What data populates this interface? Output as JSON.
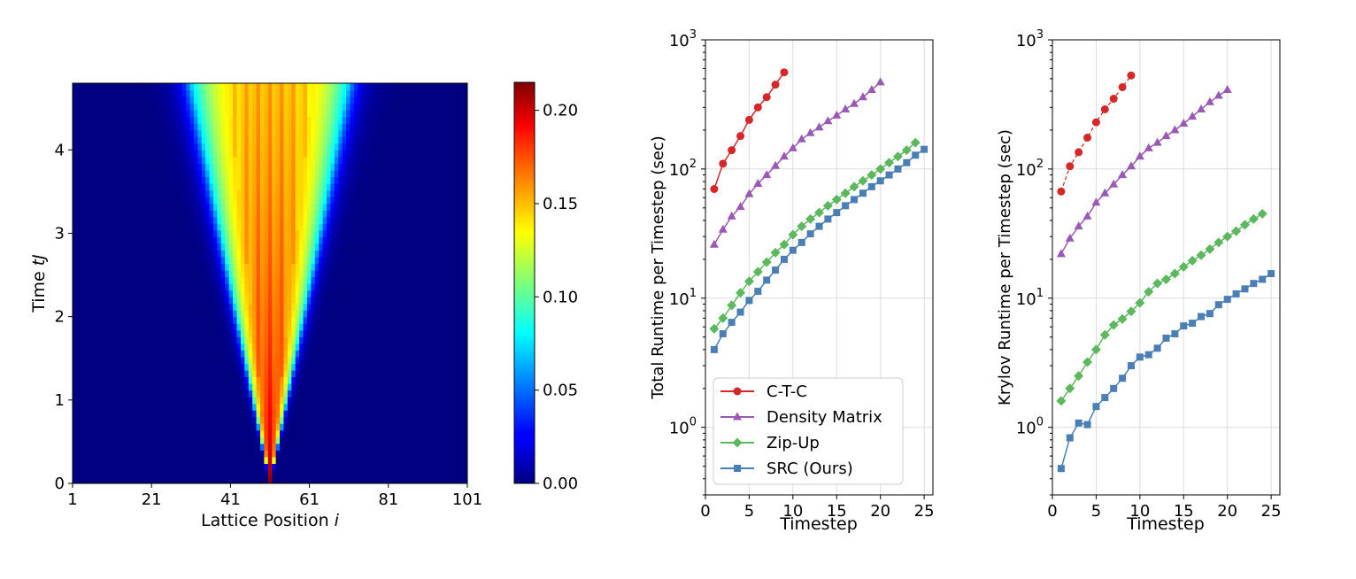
{
  "chart_data": [
    {
      "type": "heatmap",
      "title": "",
      "xlabel": "Lattice Position i",
      "ylabel": "Time tJ",
      "x_ticks": [
        "1",
        "21",
        "41",
        "61",
        "81",
        "101"
      ],
      "y_ticks": [
        "0",
        "1",
        "2",
        "3",
        "4"
      ],
      "xlim": [
        1,
        101
      ],
      "ylim": [
        0,
        4.8
      ],
      "colormap": "jet",
      "colorbar": {
        "range": [
          0,
          0.215
        ],
        "ticks": [
          "0.00",
          "0.05",
          "0.10",
          "0.15",
          "0.20"
        ],
        "tick_values": [
          0,
          0.05,
          0.1,
          0.15,
          0.2
        ]
      },
      "pattern": {
        "center_position": 51,
        "initial_value": 0.215,
        "spread_half_width_at_max_time": 20,
        "core_value_at_max_time": 0.15
      }
    },
    {
      "type": "line",
      "xlabel": "Timestep",
      "ylabel": "Total Runtime per Timestep (sec)",
      "y_scale": "log",
      "xlim": [
        0,
        26
      ],
      "ylim": [
        0.3,
        1000
      ],
      "x_ticks": [
        "0",
        "5",
        "10",
        "15",
        "20",
        "25"
      ],
      "y_ticks": [
        {
          "base": "10",
          "exp": "0"
        },
        {
          "base": "10",
          "exp": "1"
        },
        {
          "base": "10",
          "exp": "2"
        },
        {
          "base": "10",
          "exp": "3"
        }
      ],
      "grid": true,
      "legend_position": "lower-left",
      "series": [
        {
          "name": "C-T-C",
          "color": "#d62728",
          "marker": "circle",
          "line": "solid",
          "x": [
            1,
            2,
            3,
            4,
            5,
            6,
            7,
            8,
            9
          ],
          "y": [
            70,
            110,
            140,
            180,
            240,
            300,
            360,
            450,
            560
          ]
        },
        {
          "name": "Density Matrix",
          "color": "#9b59b6",
          "marker": "triangle",
          "line": "solid",
          "x": [
            1,
            2,
            3,
            4,
            5,
            6,
            7,
            8,
            9,
            10,
            11,
            12,
            13,
            14,
            15,
            16,
            17,
            18,
            19,
            20
          ],
          "y": [
            26,
            34,
            43,
            51,
            64,
            77,
            90,
            106,
            125,
            145,
            170,
            190,
            210,
            235,
            260,
            290,
            320,
            360,
            410,
            470
          ]
        },
        {
          "name": "Zip-Up",
          "color": "#5cb85c",
          "marker": "diamond",
          "line": "solid",
          "x": [
            1,
            2,
            3,
            4,
            5,
            6,
            7,
            8,
            9,
            10,
            11,
            12,
            13,
            14,
            15,
            16,
            17,
            18,
            19,
            20,
            21,
            22,
            23,
            24
          ],
          "y": [
            5.8,
            7.0,
            8.8,
            11,
            13.5,
            16,
            19,
            22.5,
            26,
            31,
            36,
            41,
            46,
            52,
            58,
            65,
            73,
            81,
            90,
            100,
            112,
            125,
            140,
            160
          ]
        },
        {
          "name": "SRC (Ours)",
          "color": "#4a7fb5",
          "marker": "square",
          "line": "solid",
          "x": [
            1,
            2,
            3,
            4,
            5,
            6,
            7,
            8,
            9,
            10,
            11,
            12,
            13,
            14,
            15,
            16,
            17,
            18,
            19,
            20,
            21,
            22,
            23,
            24,
            25
          ],
          "y": [
            4.0,
            5.3,
            6.5,
            7.8,
            9.6,
            11.3,
            13.8,
            16.5,
            20,
            23.5,
            27,
            31.5,
            36,
            41,
            46,
            52,
            58,
            65,
            73,
            81,
            90,
            100,
            112,
            128,
            142
          ]
        }
      ]
    },
    {
      "type": "line",
      "xlabel": "Timestep",
      "ylabel": "Krylov Runtime per Timestep (sec)",
      "y_scale": "log",
      "xlim": [
        0,
        26
      ],
      "ylim": [
        0.3,
        1000
      ],
      "x_ticks": [
        "0",
        "5",
        "10",
        "15",
        "20",
        "25"
      ],
      "y_ticks": [
        {
          "base": "10",
          "exp": "0"
        },
        {
          "base": "10",
          "exp": "1"
        },
        {
          "base": "10",
          "exp": "2"
        },
        {
          "base": "10",
          "exp": "3"
        }
      ],
      "grid": true,
      "series": [
        {
          "name": "C-T-C",
          "color": "#d62728",
          "marker": "circle",
          "line": "dashed",
          "x": [
            1,
            2,
            3,
            4,
            5,
            6,
            7,
            8,
            9
          ],
          "y": [
            67,
            105,
            135,
            175,
            230,
            290,
            350,
            430,
            530
          ]
        },
        {
          "name": "Density Matrix",
          "color": "#9b59b6",
          "marker": "triangle",
          "line": "solid",
          "x": [
            1,
            2,
            3,
            4,
            5,
            6,
            7,
            8,
            9,
            10,
            11,
            12,
            13,
            14,
            15,
            16,
            17,
            18,
            19,
            20
          ],
          "y": [
            22,
            29,
            36,
            43,
            55,
            65,
            76,
            90,
            105,
            125,
            145,
            160,
            180,
            200,
            225,
            255,
            290,
            330,
            370,
            410
          ]
        },
        {
          "name": "Zip-Up",
          "color": "#5cb85c",
          "marker": "diamond",
          "line": "solid",
          "x": [
            1,
            2,
            3,
            4,
            5,
            6,
            7,
            8,
            9,
            10,
            11,
            12,
            13,
            14,
            15,
            16,
            17,
            18,
            19,
            20,
            21,
            22,
            23,
            24
          ],
          "y": [
            1.6,
            2.0,
            2.5,
            3.2,
            4.0,
            5.2,
            6.2,
            6.9,
            7.9,
            9.2,
            11.2,
            13,
            14,
            15.5,
            17.5,
            19.5,
            21.5,
            24,
            27,
            30,
            33,
            37,
            41,
            45
          ]
        },
        {
          "name": "SRC (Ours)",
          "color": "#4a7fb5",
          "marker": "square",
          "line": "solid",
          "x": [
            1,
            2,
            3,
            4,
            5,
            6,
            7,
            8,
            9,
            10,
            11,
            12,
            13,
            14,
            15,
            16,
            17,
            18,
            19,
            20,
            21,
            22,
            23,
            24,
            25
          ],
          "y": [
            0.48,
            0.83,
            1.08,
            1.05,
            1.45,
            1.7,
            2.0,
            2.4,
            3.0,
            3.5,
            3.65,
            4.1,
            4.9,
            5.3,
            6.1,
            6.4,
            7.2,
            7.6,
            8.9,
            9.8,
            10.8,
            11.8,
            13,
            14,
            15.5
          ]
        }
      ]
    }
  ]
}
